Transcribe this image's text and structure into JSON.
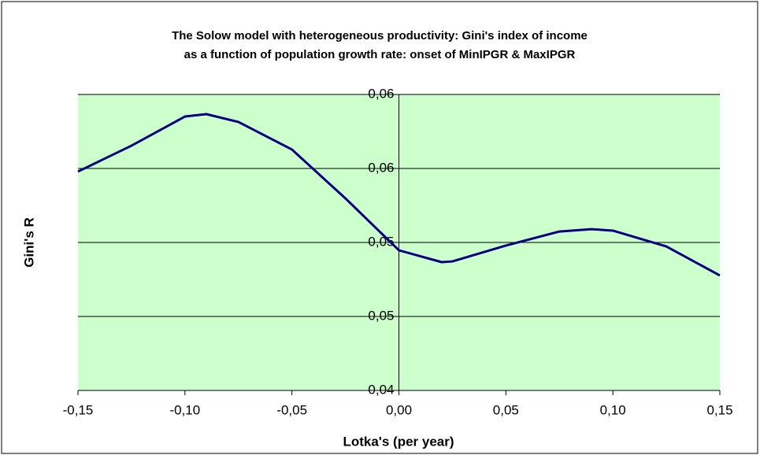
{
  "chart_data": {
    "type": "line",
    "title": [
      "The Solow model with heterogeneous productivity: Gini's index of income",
      "as a function of population growth rate:  onset of MinIPGR & MaxIPGR"
    ],
    "xlabel": "Lotka's (per year)",
    "ylabel": "Gini's R",
    "x": [
      -0.15,
      -0.125,
      -0.1,
      -0.09,
      -0.075,
      -0.05,
      -0.025,
      0,
      0.02,
      0.025,
      0.05,
      0.075,
      0.09,
      0.1,
      0.125,
      0.15
    ],
    "series": [
      {
        "name": "Gini's R",
        "color": "#000080",
        "values": [
          0.05479,
          0.05654,
          0.05851,
          0.05867,
          0.05814,
          0.05628,
          0.05298,
          0.04947,
          0.04867,
          0.04872,
          0.04979,
          0.05074,
          0.0509,
          0.0508,
          0.04973,
          0.04777
        ]
      }
    ],
    "xlim": [
      -0.15,
      0.15
    ],
    "xticks": [
      {
        "value": -0.15,
        "label": "-0,15"
      },
      {
        "value": -0.1,
        "label": "-0,10"
      },
      {
        "value": -0.05,
        "label": "-0,05"
      },
      {
        "value": 0,
        "label": "0,00"
      },
      {
        "value": 0.05,
        "label": "0,05"
      },
      {
        "value": 0.1,
        "label": "0,10"
      },
      {
        "value": 0.15,
        "label": "0,15"
      }
    ],
    "ylim": [
      0.04,
      0.06
    ],
    "yticks": [
      {
        "value": 0.04,
        "label": "0,04"
      },
      {
        "value": 0.045,
        "label": "0,05"
      },
      {
        "value": 0.05,
        "label": "0,05"
      },
      {
        "value": 0.055,
        "label": "0,06"
      },
      {
        "value": 0.06,
        "label": "0,06"
      }
    ],
    "grid": true,
    "plot_background": "#ccffcc"
  }
}
